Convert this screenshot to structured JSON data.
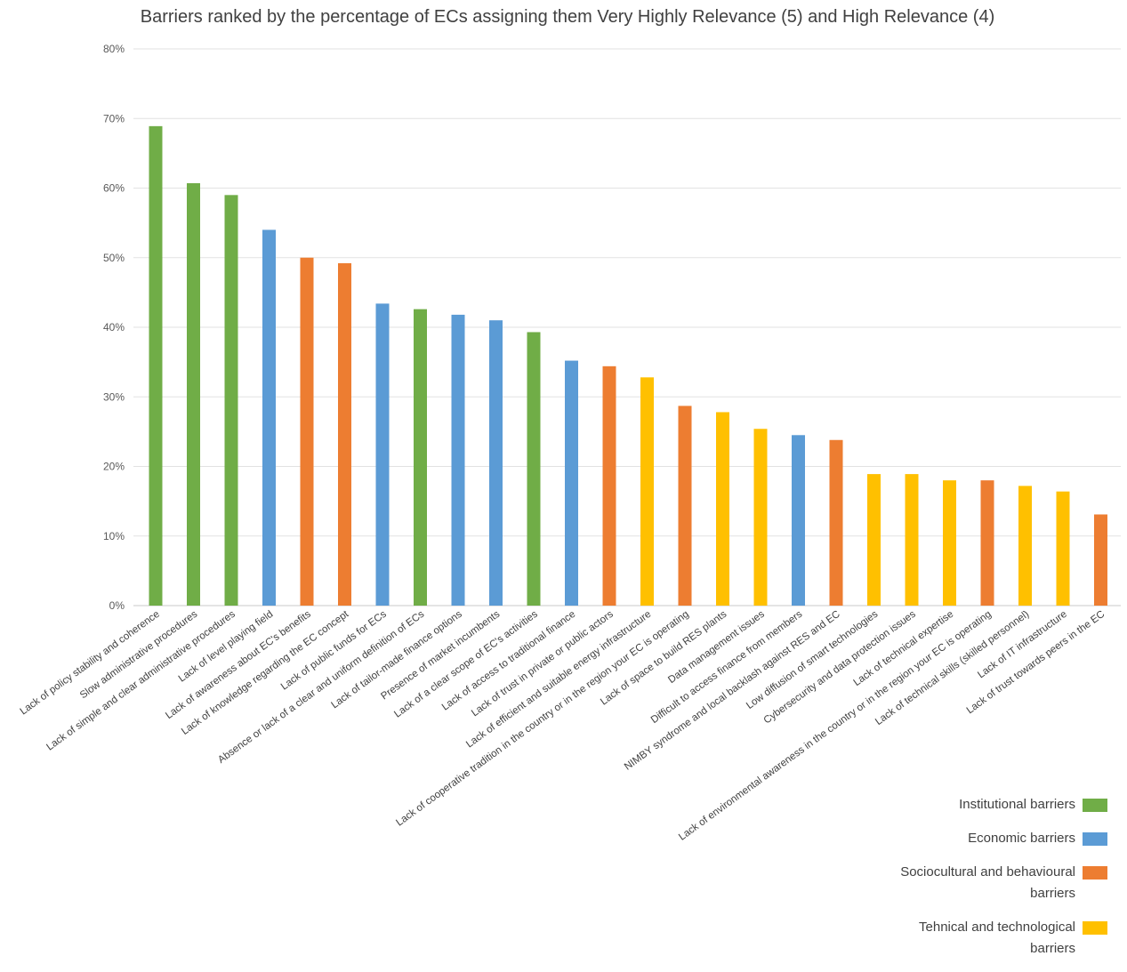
{
  "chart_data": {
    "type": "bar",
    "title": "Barriers ranked by the percentage of ECs assigning them Very Highly Relevance (5) and High Relevance (4)",
    "xlabel": "",
    "ylabel": "",
    "ylim": [
      0,
      80
    ],
    "yticks": [
      "0%",
      "10%",
      "20%",
      "30%",
      "40%",
      "50%",
      "60%",
      "70%",
      "80%"
    ],
    "grid": "horizontal",
    "legend_position": "bottom-right",
    "categories": [
      "Lack of policy stability and coherence",
      "Slow administrative procedures",
      "Lack of simple and clear administrative procedures",
      "Lack of level playing field",
      "Lack of awareness about EC's benefits",
      "Lack of knowledge regarding the EC concept",
      "Lack of public funds for ECs",
      "Absence or lack of a clear and uniform definition of ECs",
      "Lack of tailor-made finance options",
      "Presence of market incumbents",
      "Lack of a clear scope of EC's activities",
      "Lack of access to traditional finance",
      "Lack of trust in private or public actors",
      "Lack of efficient and suitable energy infrastructure",
      "Lack of cooperative tradition in the country or in the region your EC is operating",
      "Lack of space to build RES plants",
      "Data management issues",
      "Difficult to access finance from members",
      "NIMBY syndrome and local backlash against RES and EC",
      "Low diffusion of smart technologies",
      "Cybersecurity and data protection issues",
      "Lack of technical expertise",
      "Lack of environmental awareness in the country or in the region your EC is operating",
      "Lack of technical skills (skilled personnel)",
      "Lack of IT infrastructure",
      "Lack of trust towards peers in the EC"
    ],
    "values": [
      68.9,
      60.7,
      59.0,
      54.0,
      50.0,
      49.2,
      43.4,
      42.6,
      41.8,
      41.0,
      39.3,
      35.2,
      34.4,
      32.8,
      28.7,
      27.8,
      25.4,
      24.5,
      23.8,
      18.9,
      18.9,
      18.0,
      18.0,
      17.2,
      16.4,
      13.1
    ],
    "bar_groups": [
      "inst",
      "inst",
      "inst",
      "econ",
      "soc",
      "soc",
      "econ",
      "inst",
      "econ",
      "econ",
      "inst",
      "econ",
      "soc",
      "tech",
      "soc",
      "tech",
      "tech",
      "econ",
      "soc",
      "tech",
      "tech",
      "tech",
      "soc",
      "tech",
      "tech",
      "soc"
    ],
    "legend": [
      {
        "key": "inst",
        "name": "Institutional barriers",
        "color": "#70AD47"
      },
      {
        "key": "econ",
        "name": "Economic barriers",
        "color": "#5B9BD5"
      },
      {
        "key": "soc",
        "name": "Sociocultural and behavioural barriers",
        "color": "#ED7D31"
      },
      {
        "key": "tech",
        "name": "Tehnical and technological barriers",
        "color": "#FFC000"
      }
    ]
  }
}
